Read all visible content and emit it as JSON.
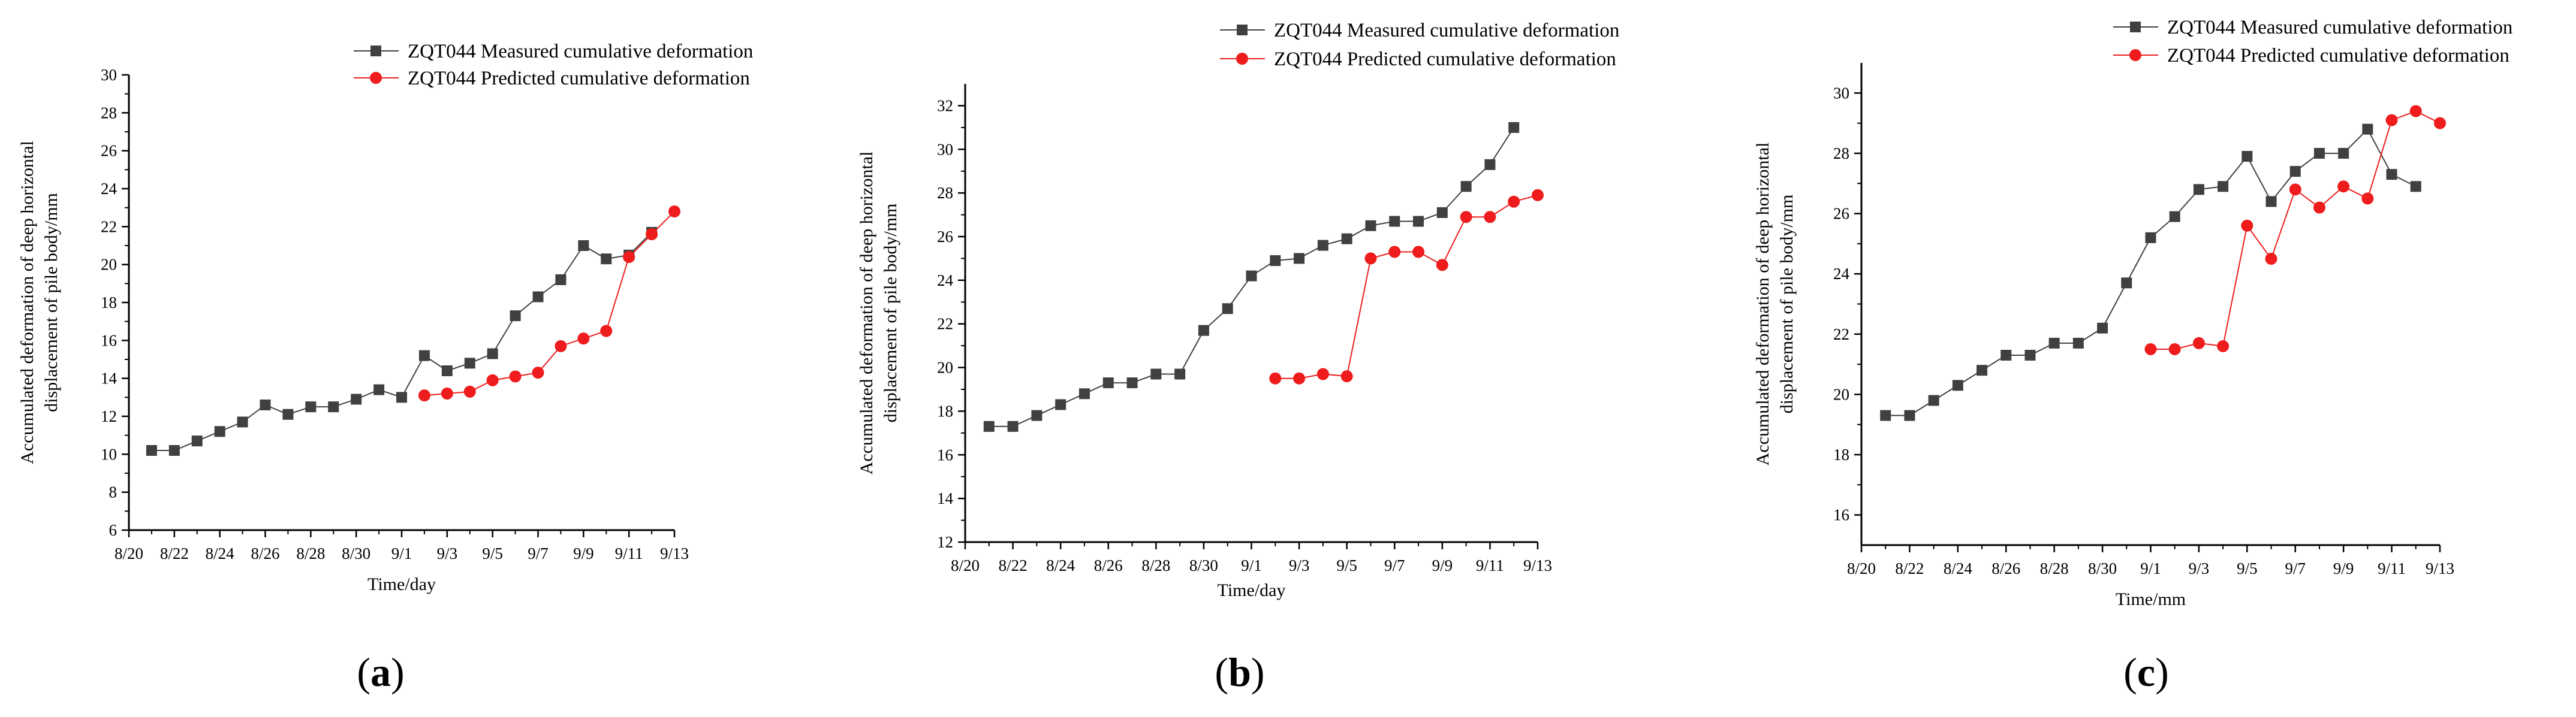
{
  "chart_data": [
    {
      "type": "line",
      "panel_label": "(a)",
      "xlabel": "Time/day",
      "ylabel": [
        "Accumulated deformation of deep horizontal",
        "displacement of pile body/mm"
      ],
      "ylim": [
        6,
        30
      ],
      "yticks": [
        6,
        8,
        10,
        12,
        14,
        16,
        18,
        20,
        22,
        24,
        26,
        28,
        30
      ],
      "xlim": [
        0,
        24
      ],
      "xticks": [
        0,
        2,
        4,
        6,
        8,
        10,
        12,
        14,
        16,
        18,
        20,
        22,
        24
      ],
      "xticklabels": [
        "8/20",
        "8/22",
        "8/24",
        "8/26",
        "8/28",
        "8/30",
        "9/1",
        "9/3",
        "9/5",
        "9/7",
        "9/9",
        "9/11",
        "9/13"
      ],
      "legend_position": "top-right",
      "series": [
        {
          "name": "ZQT044 Measured cumulative deformation",
          "color": "#404040",
          "marker": "square",
          "x": [
            1,
            2,
            3,
            4,
            5,
            6,
            7,
            8,
            9,
            10,
            11,
            12,
            13,
            14,
            15,
            16,
            17,
            18,
            19,
            20,
            21,
            22,
            23
          ],
          "y": [
            10.2,
            10.2,
            10.7,
            11.2,
            11.7,
            12.6,
            12.1,
            12.5,
            12.5,
            12.9,
            13.4,
            13.0,
            15.2,
            14.4,
            14.8,
            15.3,
            17.3,
            18.3,
            19.2,
            21.0,
            20.3,
            20.5,
            21.7
          ]
        },
        {
          "name": "ZQT044 Predicted cumulative deformation",
          "color": "#ee1c1c",
          "marker": "circle",
          "x": [
            13,
            14,
            15,
            16,
            17,
            18,
            19,
            20,
            21,
            22,
            23,
            24
          ],
          "y": [
            13.1,
            13.2,
            13.3,
            13.9,
            14.1,
            14.3,
            15.7,
            16.1,
            16.5,
            20.4,
            21.6,
            22.8
          ]
        }
      ]
    },
    {
      "type": "line",
      "panel_label": "(b)",
      "xlabel": "Time/day",
      "ylabel": [
        "Accumulated deformation of deep horizontal",
        "displacement of pile body/mm"
      ],
      "ylim": [
        12,
        33
      ],
      "yticks": [
        12,
        14,
        16,
        18,
        20,
        22,
        24,
        26,
        28,
        30,
        32
      ],
      "xlim": [
        0,
        24
      ],
      "xticks": [
        0,
        2,
        4,
        6,
        8,
        10,
        12,
        14,
        16,
        18,
        20,
        22,
        24
      ],
      "xticklabels": [
        "8/20",
        "8/22",
        "8/24",
        "8/26",
        "8/28",
        "8/30",
        "9/1",
        "9/3",
        "9/5",
        "9/7",
        "9/9",
        "9/11",
        "9/13"
      ],
      "legend_position": "top-right",
      "series": [
        {
          "name": "ZQT044 Measured cumulative deformation",
          "color": "#404040",
          "marker": "square",
          "x": [
            1,
            2,
            3,
            4,
            5,
            6,
            7,
            8,
            9,
            10,
            11,
            12,
            13,
            14,
            15,
            16,
            17,
            18,
            19,
            20,
            21,
            22,
            23
          ],
          "y": [
            17.3,
            17.3,
            17.8,
            18.3,
            18.8,
            19.3,
            19.3,
            19.7,
            19.7,
            21.7,
            22.7,
            24.2,
            24.9,
            25.0,
            25.6,
            25.9,
            26.5,
            26.7,
            26.7,
            27.1,
            28.3,
            29.3,
            31.0
          ]
        },
        {
          "name": "ZQT044 Predicted cumulative deformation",
          "color": "#ee1c1c",
          "marker": "circle",
          "x": [
            13,
            14,
            15,
            16,
            17,
            18,
            19,
            20,
            21,
            22,
            23,
            24
          ],
          "y": [
            19.5,
            19.5,
            19.7,
            19.6,
            25.0,
            25.3,
            25.3,
            24.7,
            26.9,
            26.9,
            27.6,
            27.9
          ]
        }
      ]
    },
    {
      "type": "line",
      "panel_label": "(c)",
      "xlabel": "Time/mm",
      "ylabel": [
        "Accumulated deformation of deep horizontal",
        "displacement of pile body/mm"
      ],
      "ylim": [
        15,
        31
      ],
      "yticks": [
        16,
        18,
        20,
        22,
        24,
        26,
        28,
        30
      ],
      "xlim": [
        0,
        24
      ],
      "xticks": [
        0,
        2,
        4,
        6,
        8,
        10,
        12,
        14,
        16,
        18,
        20,
        22,
        24
      ],
      "xticklabels": [
        "8/20",
        "8/22",
        "8/24",
        "8/26",
        "8/28",
        "8/30",
        "9/1",
        "9/3",
        "9/5",
        "9/7",
        "9/9",
        "9/11",
        "9/13"
      ],
      "legend_position": "top-right",
      "series": [
        {
          "name": "ZQT044 Measured cumulative deformation",
          "color": "#404040",
          "marker": "square",
          "x": [
            1,
            2,
            3,
            4,
            5,
            6,
            7,
            8,
            9,
            10,
            11,
            12,
            13,
            14,
            15,
            16,
            17,
            18,
            19,
            20,
            21,
            22,
            23
          ],
          "y": [
            19.3,
            19.3,
            19.8,
            20.3,
            20.8,
            21.3,
            21.3,
            21.7,
            21.7,
            22.2,
            23.7,
            25.2,
            25.9,
            26.8,
            26.9,
            27.9,
            26.4,
            27.4,
            28.0,
            28.0,
            28.8,
            27.3,
            26.9
          ]
        },
        {
          "name": "ZQT044 Predicted cumulative deformation",
          "color": "#ee1c1c",
          "marker": "circle",
          "x": [
            12,
            13,
            14,
            15,
            16,
            17,
            18,
            19,
            20,
            21,
            22,
            23,
            24
          ],
          "y": [
            21.5,
            21.5,
            21.7,
            21.6,
            25.6,
            24.5,
            26.8,
            26.2,
            26.9,
            26.5,
            29.1,
            29.4,
            29.0
          ]
        }
      ]
    }
  ]
}
